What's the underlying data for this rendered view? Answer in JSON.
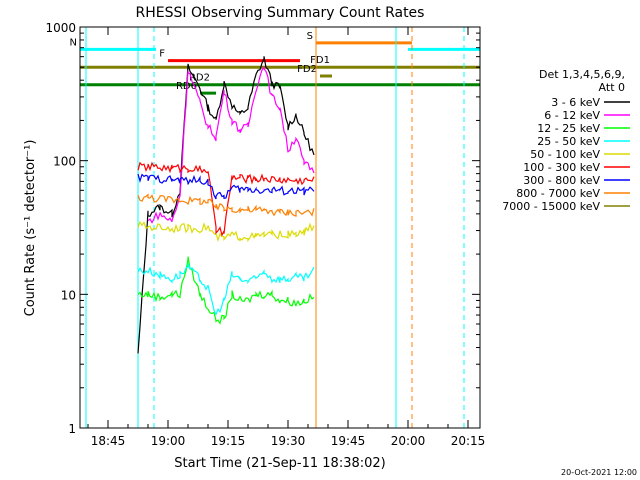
{
  "chart_data": {
    "type": "line",
    "title": "RHESSI Observing Summary Count Rates",
    "xlabel": "Start Time (21-Sep-11 18:38:02)",
    "ylabel": "Count Rate (s⁻¹ detector⁻¹)",
    "y_scale": "log",
    "ylim": [
      1,
      1000
    ],
    "xlim": [
      "18:38",
      "20:18"
    ],
    "x_ticks": [
      "18:45",
      "19:00",
      "19:15",
      "19:30",
      "19:45",
      "20:00",
      "20:15"
    ],
    "y_ticks": [
      "1",
      "10",
      "100",
      "1000"
    ],
    "grid": false,
    "legend_position": "right",
    "legend_header": [
      "Det 1,3,4,5,6,9,",
      "Att 0"
    ],
    "timestamp": "20-Oct-2021 12:00",
    "series": [
      {
        "name": "3 - 6 keV",
        "color": "#000000",
        "x": [
          "18:52:30",
          "18:55:00",
          "18:58:00",
          "19:01:00",
          "19:03:00",
          "19:05:00",
          "19:08:00",
          "19:10:00",
          "19:12:00",
          "19:14:00",
          "19:16:00",
          "19:18:00",
          "19:20:00",
          "19:22:00",
          "19:24:00",
          "19:26:00",
          "19:28:00",
          "19:30:00",
          "19:32:00",
          "19:34:00",
          "19:36:30"
        ],
        "y": [
          3.5,
          40,
          45,
          40,
          60,
          500,
          350,
          250,
          200,
          380,
          260,
          220,
          250,
          430,
          580,
          380,
          350,
          180,
          220,
          160,
          110
        ]
      },
      {
        "name": "6 - 12 keV",
        "color": "#ff00ff",
        "x": [
          "18:55:00",
          "18:58:00",
          "19:01:00",
          "19:03:00",
          "19:05:00",
          "19:08:00",
          "19:10:00",
          "19:12:00",
          "19:14:00",
          "19:16:00",
          "19:18:00",
          "19:20:00",
          "19:22:00",
          "19:24:00",
          "19:26:00",
          "19:28:00",
          "19:30:00",
          "19:32:00",
          "19:34:00",
          "19:36:30"
        ],
        "y": [
          35,
          40,
          35,
          55,
          480,
          270,
          180,
          150,
          330,
          200,
          170,
          180,
          350,
          520,
          300,
          250,
          120,
          150,
          95,
          85
        ]
      },
      {
        "name": "12 - 25 keV",
        "color": "#00ff00",
        "x": [
          "18:52:30",
          "18:55:00",
          "18:58:00",
          "19:01:00",
          "19:03:00",
          "19:05:00",
          "19:08:00",
          "19:10:00",
          "19:12:00",
          "19:14:00",
          "19:16:00",
          "19:18:00",
          "19:20:00",
          "19:22:00",
          "19:24:00",
          "19:26:00",
          "19:28:00",
          "19:30:00",
          "19:32:00",
          "19:34:00",
          "19:36:30"
        ],
        "y": [
          10,
          10,
          9.5,
          10,
          10,
          18,
          10,
          8,
          6.5,
          6.5,
          10,
          9,
          9,
          10,
          10,
          10,
          9,
          9,
          8.5,
          9,
          9.5
        ]
      },
      {
        "name": "25 - 50 keV",
        "color": "#00ffff",
        "x": [
          "18:52:30",
          "18:55:00",
          "18:58:00",
          "19:01:00",
          "19:03:00",
          "19:05:00",
          "19:08:00",
          "19:10:00",
          "19:12:00",
          "19:14:00",
          "19:16:00",
          "19:18:00",
          "19:20:00",
          "19:22:00",
          "19:24:00",
          "19:26:00",
          "19:28:00",
          "19:30:00",
          "19:32:00",
          "19:34:00",
          "19:36:30"
        ],
        "y": [
          15,
          15,
          14,
          13,
          14,
          16,
          13,
          11,
          7,
          9,
          14,
          13,
          12.5,
          13,
          15,
          13,
          13,
          13,
          13.5,
          13,
          15
        ]
      },
      {
        "name": "50 - 100 keV",
        "color": "#dcdc00",
        "x": [
          "18:52:30",
          "18:55:00",
          "18:58:00",
          "19:01:00",
          "19:03:00",
          "19:05:00",
          "19:08:00",
          "19:10:00",
          "19:12:00",
          "19:14:00",
          "19:16:00",
          "19:18:00",
          "19:20:00",
          "19:22:00",
          "19:24:00",
          "19:26:00",
          "19:28:00",
          "19:30:00",
          "19:32:00",
          "19:34:00",
          "19:36:30"
        ],
        "y": [
          33,
          32,
          32,
          31,
          32,
          31,
          31,
          32,
          27,
          26,
          28,
          27,
          27,
          27,
          28,
          28,
          28,
          28,
          28,
          29,
          33
        ]
      },
      {
        "name": "100 - 300 keV",
        "color": "#ff0000",
        "x": [
          "18:52:30",
          "18:55:00",
          "18:58:00",
          "19:01:00",
          "19:03:00",
          "19:05:00",
          "19:08:00",
          "19:10:00",
          "19:12:00",
          "19:14:00",
          "19:16:00",
          "19:18:00",
          "19:20:00",
          "19:22:00",
          "19:24:00",
          "19:26:00",
          "19:28:00",
          "19:30:00",
          "19:32:00",
          "19:34:00",
          "19:36:30"
        ],
        "y": [
          90,
          90,
          89,
          88,
          88,
          88,
          86,
          85,
          30,
          29,
          75,
          74,
          73,
          73,
          74,
          73,
          72,
          72,
          71,
          71,
          72
        ]
      },
      {
        "name": "300 - 800 keV",
        "color": "#0000ff",
        "x": [
          "18:52:30",
          "18:55:00",
          "18:58:00",
          "19:01:00",
          "19:03:00",
          "19:05:00",
          "19:08:00",
          "19:10:00",
          "19:12:00",
          "19:14:00",
          "19:16:00",
          "19:18:00",
          "19:20:00",
          "19:22:00",
          "19:24:00",
          "19:26:00",
          "19:28:00",
          "19:30:00",
          "19:32:00",
          "19:34:00",
          "19:36:30"
        ],
        "y": [
          75,
          74,
          73,
          72,
          71,
          71,
          71,
          70,
          54,
          54,
          62,
          61,
          61,
          61,
          60,
          60,
          60,
          59,
          59,
          59,
          60
        ]
      },
      {
        "name": "800 - 7000 keV",
        "color": "#ff8000",
        "x": [
          "18:52:30",
          "18:55:00",
          "18:58:00",
          "19:01:00",
          "19:03:00",
          "19:05:00",
          "19:08:00",
          "19:10:00",
          "19:12:00",
          "19:14:00",
          "19:16:00",
          "19:18:00",
          "19:20:00",
          "19:22:00",
          "19:24:00",
          "19:26:00",
          "19:28:00",
          "19:30:00",
          "19:32:00",
          "19:34:00",
          "19:36:30"
        ],
        "y": [
          53,
          53,
          52,
          51,
          51,
          50,
          50,
          49,
          45,
          44,
          44,
          43,
          43,
          43,
          42,
          42,
          41,
          41,
          41,
          41,
          42
        ]
      },
      {
        "name": "7000 - 15000 keV",
        "color": "#808000",
        "x": [],
        "y": []
      }
    ],
    "flags": [
      {
        "label": "N",
        "color": "#00ffff",
        "segments": [
          [
            "18:38",
            "18:57"
          ],
          [
            "20:00",
            "20:18"
          ]
        ],
        "level": 680
      },
      {
        "label": "S",
        "color": "#ff8000",
        "segments": [
          [
            "19:37",
            "20:01"
          ]
        ],
        "level": 760
      },
      {
        "label": "F",
        "color": "#ff0000",
        "segments": [
          [
            "19:00",
            "19:33"
          ]
        ],
        "level": 560
      },
      {
        "label": "FD1",
        "color": "#808000",
        "segments": [
          [
            "18:38",
            "20:18"
          ]
        ],
        "level": 500
      },
      {
        "label": "FD2",
        "color": "#808000",
        "segments": [
          [
            "19:38",
            "19:41"
          ]
        ],
        "level": 430
      },
      {
        "label": "RD2",
        "color": "#008000",
        "segments": [
          [
            "18:38",
            "20:18"
          ]
        ],
        "level": 370
      },
      {
        "label": "RD6",
        "color": "#008000",
        "segments": [
          [
            "19:08",
            "19:12"
          ]
        ],
        "level": 320
      }
    ],
    "vertical_lines": [
      {
        "time": "18:39:30",
        "color": "#00ffff",
        "style": "solid"
      },
      {
        "time": "18:52:30",
        "color": "#00ffff",
        "style": "solid"
      },
      {
        "time": "18:56:30",
        "color": "#00ffff",
        "style": "dashed"
      },
      {
        "time": "19:37:00",
        "color": "#ff8000",
        "style": "solid"
      },
      {
        "time": "19:57:00",
        "color": "#00ffff",
        "style": "solid"
      },
      {
        "time": "20:01:00",
        "color": "#ff8000",
        "style": "dashed"
      },
      {
        "time": "20:14:00",
        "color": "#00ffff",
        "style": "dashed"
      }
    ]
  }
}
